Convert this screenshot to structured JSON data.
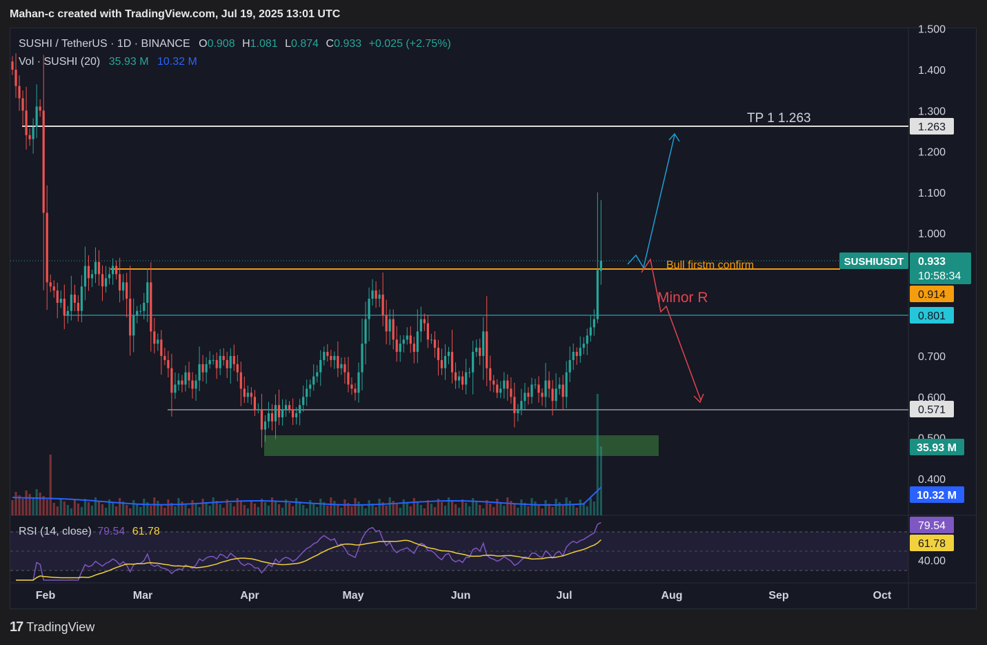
{
  "header": {
    "title": "Mahan-c created with TradingView.com, Jul 19, 2025 13:01 UTC"
  },
  "legend": {
    "symbol": "SUSHI / TetherUS · 1D · BINANCE",
    "o_label": "O",
    "o": "0.908",
    "h_label": "H",
    "h": "1.081",
    "l_label": "L",
    "l": "0.874",
    "c_label": "C",
    "c": "0.933",
    "change": "+0.025 (+2.75%)",
    "vol_label": "Vol · SUSHI (20)",
    "vol_value": "35.93 M",
    "vol_ma": "10.32 M",
    "rsi_label": "RSI (14, close)",
    "rsi_value": "79.54",
    "rsi_ma": "61.78"
  },
  "annotations": {
    "tp": "TP 1 1.263",
    "bull": "Bull firstm confirm",
    "minor": "Minor R"
  },
  "price_labels": {
    "tp": "1.263",
    "symbol": "SUSHIUSDT",
    "last": "0.933",
    "countdown": "10:58:34",
    "orange": "0.914",
    "cyan": "0.801",
    "white": "0.571",
    "vol": "35.93 M",
    "volma": "10.32 M",
    "rsi": "79.54",
    "rsima": "61.78",
    "rsi40": "40.00"
  },
  "footer": {
    "brand": "TradingView"
  },
  "colors": {
    "up": "#26a69a",
    "down": "#ef5350",
    "orange": "#f59d0e",
    "cyan": "#26c6da",
    "blue": "#2962ff",
    "rsi": "#7e57c2",
    "rsi_ma": "#f2d13c"
  },
  "chart_data": {
    "type": "candlestick",
    "title": "SUSHI / TetherUS · 1D · BINANCE",
    "y_ticks": [
      "1.500",
      "1.400",
      "1.300",
      "1.200",
      "1.100",
      "1.000",
      "0.700",
      "0.600",
      "0.500",
      "0.400"
    ],
    "x_ticks": [
      "Feb",
      "Mar",
      "Apr",
      "May",
      "Jun",
      "Jul",
      "Aug",
      "Sep",
      "Oct"
    ],
    "ylim": [
      0.33,
      1.5
    ],
    "levels": [
      {
        "name": "TP 1",
        "value": 1.263
      },
      {
        "name": "Bull firstm confirm",
        "value": 0.914
      },
      {
        "name": "cyan",
        "value": 0.801
      },
      {
        "name": "support",
        "value": 0.571
      }
    ],
    "demand_zone": [
      0.455,
      0.505
    ],
    "close": [
      1.4,
      1.36,
      1.33,
      1.3,
      1.24,
      1.23,
      1.26,
      1.31,
      1.3,
      1.05,
      0.88,
      0.87,
      0.86,
      0.83,
      0.84,
      0.8,
      0.81,
      0.85,
      0.83,
      0.81,
      0.87,
      0.92,
      0.89,
      0.9,
      0.93,
      0.9,
      0.87,
      0.89,
      0.9,
      0.92,
      0.9,
      0.86,
      0.88,
      0.84,
      0.75,
      0.8,
      0.81,
      0.81,
      0.83,
      0.88,
      0.76,
      0.73,
      0.74,
      0.7,
      0.69,
      0.67,
      0.61,
      0.63,
      0.64,
      0.63,
      0.66,
      0.64,
      0.62,
      0.64,
      0.68,
      0.66,
      0.68,
      0.69,
      0.69,
      0.67,
      0.7,
      0.69,
      0.67,
      0.7,
      0.68,
      0.66,
      0.62,
      0.6,
      0.61,
      0.6,
      0.57,
      0.57,
      0.52,
      0.54,
      0.56,
      0.54,
      0.58,
      0.55,
      0.57,
      0.58,
      0.57,
      0.55,
      0.56,
      0.58,
      0.6,
      0.62,
      0.63,
      0.65,
      0.66,
      0.69,
      0.71,
      0.7,
      0.69,
      0.7,
      0.67,
      0.68,
      0.66,
      0.63,
      0.62,
      0.61,
      0.66,
      0.73,
      0.79,
      0.84,
      0.86,
      0.84,
      0.85,
      0.8,
      0.76,
      0.79,
      0.74,
      0.71,
      0.73,
      0.74,
      0.75,
      0.73,
      0.71,
      0.76,
      0.79,
      0.78,
      0.74,
      0.74,
      0.72,
      0.69,
      0.67,
      0.7,
      0.71,
      0.66,
      0.64,
      0.65,
      0.63,
      0.66,
      0.66,
      0.71,
      0.72,
      0.7,
      0.76,
      0.67,
      0.64,
      0.63,
      0.61,
      0.62,
      0.64,
      0.62,
      0.6,
      0.56,
      0.57,
      0.59,
      0.61,
      0.6,
      0.63,
      0.63,
      0.61,
      0.6,
      0.64,
      0.62,
      0.59,
      0.62,
      0.63,
      0.6,
      0.66,
      0.69,
      0.71,
      0.7,
      0.72,
      0.73,
      0.75,
      0.77,
      0.79,
      0.91,
      0.933
    ],
    "volume_ma": 10.32,
    "volume_last": 35.93,
    "rsi": 79.54,
    "rsi_ma": 61.78,
    "rsi_levels": [
      70,
      50,
      30
    ]
  }
}
